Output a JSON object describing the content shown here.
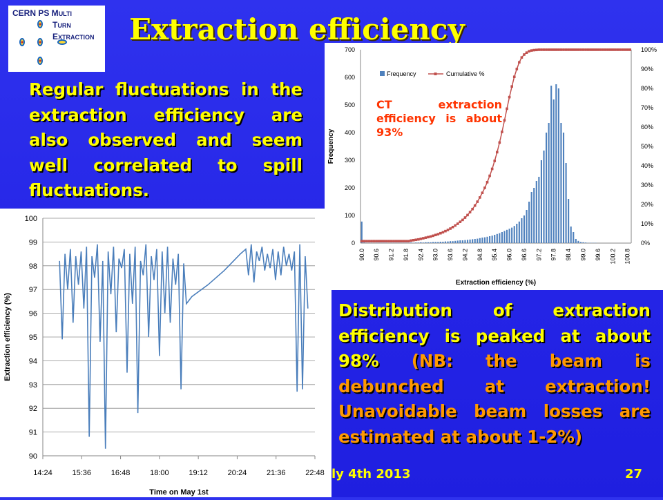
{
  "slide": {
    "title": "Extraction efficiency",
    "paragraph_left": "Regular fluctuations in the extraction efficiency are also observed and seem well correlated to spill fluctuations.",
    "paragraph_right_main": "Distribution of extraction efficiency is peaked at about 98%",
    "paragraph_right_note": "(NB: the beam is debunched at extraction! Unavoidable beam losses are estimated at about 1-2%)",
    "footer_date": "ly 4th 2013",
    "page_number": "27",
    "logo": {
      "line1": "CERN PS M",
      "line1b": "ULTI",
      "line2a": "T",
      "line2b": "URN",
      "line3a": "E",
      "line3b": "XTRACTION"
    },
    "colors": {
      "background": "#2424e6",
      "text": "#ffff00",
      "note": "#ff9900",
      "bar": "#4f81bd",
      "cumulative": "#c0504d",
      "series": "#4a7ebb"
    }
  },
  "chart_data": [
    {
      "type": "bar",
      "title": "",
      "annotation": "CT extraction efficiency is about 93%",
      "xlabel": "Extraction efficiency (%)",
      "ylabel": "Frequency",
      "ylim": [
        0,
        700
      ],
      "y_ticks": [
        "0",
        "100",
        "200",
        "300",
        "400",
        "500",
        "600",
        "700"
      ],
      "y2lim": [
        0,
        100
      ],
      "y2_ticks": [
        "0%",
        "10%",
        "20%",
        "30%",
        "40%",
        "50%",
        "60%",
        "70%",
        "80%",
        "90%",
        "100%"
      ],
      "x_tick_labels": [
        "90.0",
        "90.6",
        "91.2",
        "91.8",
        "92.4",
        "93.0",
        "93.6",
        "94.2",
        "94.8",
        "95.4",
        "96.0",
        "96.6",
        "97.2",
        "97.8",
        "98.4",
        "99.0",
        "99.6",
        "100.2",
        "100.8"
      ],
      "legend": [
        "Frequency",
        "Cumulative %"
      ],
      "legend_position": "top-left",
      "categories": [
        "90.0",
        "90.1",
        "90.2",
        "90.3",
        "90.4",
        "90.5",
        "90.6",
        "90.7",
        "90.8",
        "90.9",
        "91.0",
        "91.1",
        "91.2",
        "91.3",
        "91.4",
        "91.5",
        "91.6",
        "91.7",
        "91.8",
        "91.9",
        "92.0",
        "92.1",
        "92.2",
        "92.3",
        "92.4",
        "92.5",
        "92.6",
        "92.7",
        "92.8",
        "92.9",
        "93.0",
        "93.1",
        "93.2",
        "93.3",
        "93.4",
        "93.5",
        "93.6",
        "93.7",
        "93.8",
        "93.9",
        "94.0",
        "94.1",
        "94.2",
        "94.3",
        "94.4",
        "94.5",
        "94.6",
        "94.7",
        "94.8",
        "94.9",
        "95.0",
        "95.1",
        "95.2",
        "95.3",
        "95.4",
        "95.5",
        "95.6",
        "95.7",
        "95.8",
        "95.9",
        "96.0",
        "96.1",
        "96.2",
        "96.3",
        "96.4",
        "96.5",
        "96.6",
        "96.7",
        "96.8",
        "96.9",
        "97.0",
        "97.1",
        "97.2",
        "97.3",
        "97.4",
        "97.5",
        "97.6",
        "97.7",
        "97.8",
        "97.9",
        "98.0",
        "98.1",
        "98.2",
        "98.3",
        "98.4",
        "98.5",
        "98.6",
        "98.7",
        "98.8",
        "98.9",
        "99.0",
        "99.1",
        "99.2",
        "99.3",
        "99.4",
        "99.5",
        "99.6",
        "99.7",
        "99.8",
        "99.9",
        "100.0",
        "100.1",
        "100.2",
        "100.3",
        "100.4",
        "100.5",
        "100.6",
        "100.7",
        "100.8",
        "100.9"
      ],
      "series": [
        {
          "name": "Frequency",
          "values": [
            78,
            2,
            1,
            1,
            1,
            0,
            1,
            1,
            1,
            1,
            1,
            0,
            1,
            1,
            1,
            1,
            1,
            1,
            1,
            1,
            2,
            1,
            2,
            2,
            3,
            2,
            3,
            3,
            3,
            4,
            4,
            4,
            5,
            5,
            6,
            6,
            7,
            7,
            8,
            9,
            10,
            10,
            11,
            12,
            13,
            14,
            15,
            16,
            18,
            20,
            21,
            23,
            25,
            27,
            30,
            33,
            36,
            40,
            44,
            48,
            52,
            56,
            62,
            70,
            78,
            90,
            100,
            120,
            150,
            185,
            200,
            225,
            240,
            300,
            335,
            400,
            435,
            570,
            520,
            575,
            560,
            435,
            400,
            290,
            160,
            60,
            40,
            15,
            8,
            4,
            3,
            2,
            1,
            1,
            1,
            1,
            0,
            0,
            0,
            0,
            0,
            0,
            0,
            0,
            0,
            0,
            0,
            0,
            0,
            0
          ]
        },
        {
          "name": "Cumulative %",
          "values": [
            1,
            1,
            1,
            1,
            1,
            1,
            1,
            1,
            1,
            1,
            1,
            1,
            1,
            1,
            1,
            1,
            1,
            1,
            1,
            1,
            1.3,
            1.5,
            1.7,
            1.9,
            2.2,
            2.5,
            2.8,
            3.1,
            3.4,
            3.8,
            4.2,
            4.6,
            5.1,
            5.6,
            6.2,
            6.8,
            7.5,
            8.3,
            9.1,
            10,
            11,
            12,
            13.2,
            14.5,
            16,
            17.6,
            19.4,
            21.4,
            23.6,
            26,
            28.6,
            31.5,
            34.8,
            38.4,
            42.5,
            47,
            52,
            57.5,
            63.5,
            69.5,
            75.5,
            81,
            86,
            90,
            93.5,
            96,
            97.5,
            98.5,
            99.2,
            99.6,
            99.8,
            99.9,
            100,
            100,
            100,
            100,
            100,
            100,
            100,
            100,
            100,
            100,
            100,
            100,
            100,
            100,
            100,
            100,
            100,
            100,
            100,
            100,
            100,
            100,
            100,
            100,
            100,
            100,
            100,
            100,
            100,
            100,
            100,
            100,
            100,
            100,
            100,
            100,
            100,
            100
          ]
        }
      ]
    },
    {
      "type": "line",
      "title": "",
      "xlabel": "Time on May 1st",
      "ylabel": "Extraction efficiency (%)",
      "ylim": [
        90,
        100
      ],
      "y_ticks": [
        "90",
        "91",
        "92",
        "93",
        "94",
        "95",
        "96",
        "97",
        "98",
        "99",
        "100"
      ],
      "x_tick_labels": [
        "14:24",
        "15:36",
        "16:48",
        "18:00",
        "19:12",
        "20:24",
        "21:36",
        "22:48"
      ],
      "grid": true,
      "series": [
        {
          "name": "",
          "x": [
            "14:55",
            "15:00",
            "15:05",
            "15:10",
            "15:15",
            "15:20",
            "15:25",
            "15:30",
            "15:35",
            "15:40",
            "15:45",
            "15:50",
            "15:55",
            "16:00",
            "16:05",
            "16:10",
            "16:15",
            "16:20",
            "16:25",
            "16:30",
            "16:35",
            "16:40",
            "16:45",
            "16:50",
            "16:55",
            "17:00",
            "17:05",
            "17:10",
            "17:15",
            "17:20",
            "17:25",
            "17:30",
            "17:35",
            "17:40",
            "17:45",
            "17:50",
            "17:55",
            "18:00",
            "18:05",
            "18:10",
            "18:15",
            "18:20",
            "18:25",
            "18:30",
            "18:35",
            "18:40",
            "18:45",
            "18:50",
            "19:00",
            "19:30",
            "20:00",
            "20:30",
            "20:40",
            "20:45",
            "20:50",
            "20:55",
            "21:00",
            "21:05",
            "21:10",
            "21:15",
            "21:20",
            "21:25",
            "21:30",
            "21:35",
            "21:40",
            "21:45",
            "21:50",
            "21:55",
            "22:00",
            "22:05",
            "22:10",
            "22:15",
            "22:20",
            "22:25",
            "22:30",
            "22:35"
          ],
          "values": [
            98.2,
            94.9,
            98.5,
            97.0,
            98.7,
            95.6,
            98.4,
            97.2,
            98.6,
            96.2,
            98.8,
            90.8,
            98.4,
            97.5,
            98.9,
            94.8,
            98.2,
            90.3,
            98.6,
            96.8,
            98.8,
            95.2,
            98.3,
            97.9,
            98.7,
            93.5,
            98.5,
            96.4,
            98.8,
            91.8,
            98.2,
            97.6,
            98.9,
            95.0,
            98.4,
            97.4,
            98.7,
            94.2,
            98.6,
            96.0,
            98.8,
            95.6,
            98.3,
            97.2,
            98.5,
            92.8,
            98.1,
            96.4,
            96.7,
            97.2,
            97.8,
            98.5,
            98.7,
            97.6,
            98.9,
            97.3,
            98.6,
            98.2,
            98.8,
            97.8,
            98.5,
            97.9,
            98.7,
            97.4,
            98.6,
            97.6,
            98.8,
            98.0,
            98.5,
            97.8,
            98.6,
            92.7,
            98.9,
            92.8,
            98.4,
            96.2
          ]
        }
      ]
    }
  ]
}
